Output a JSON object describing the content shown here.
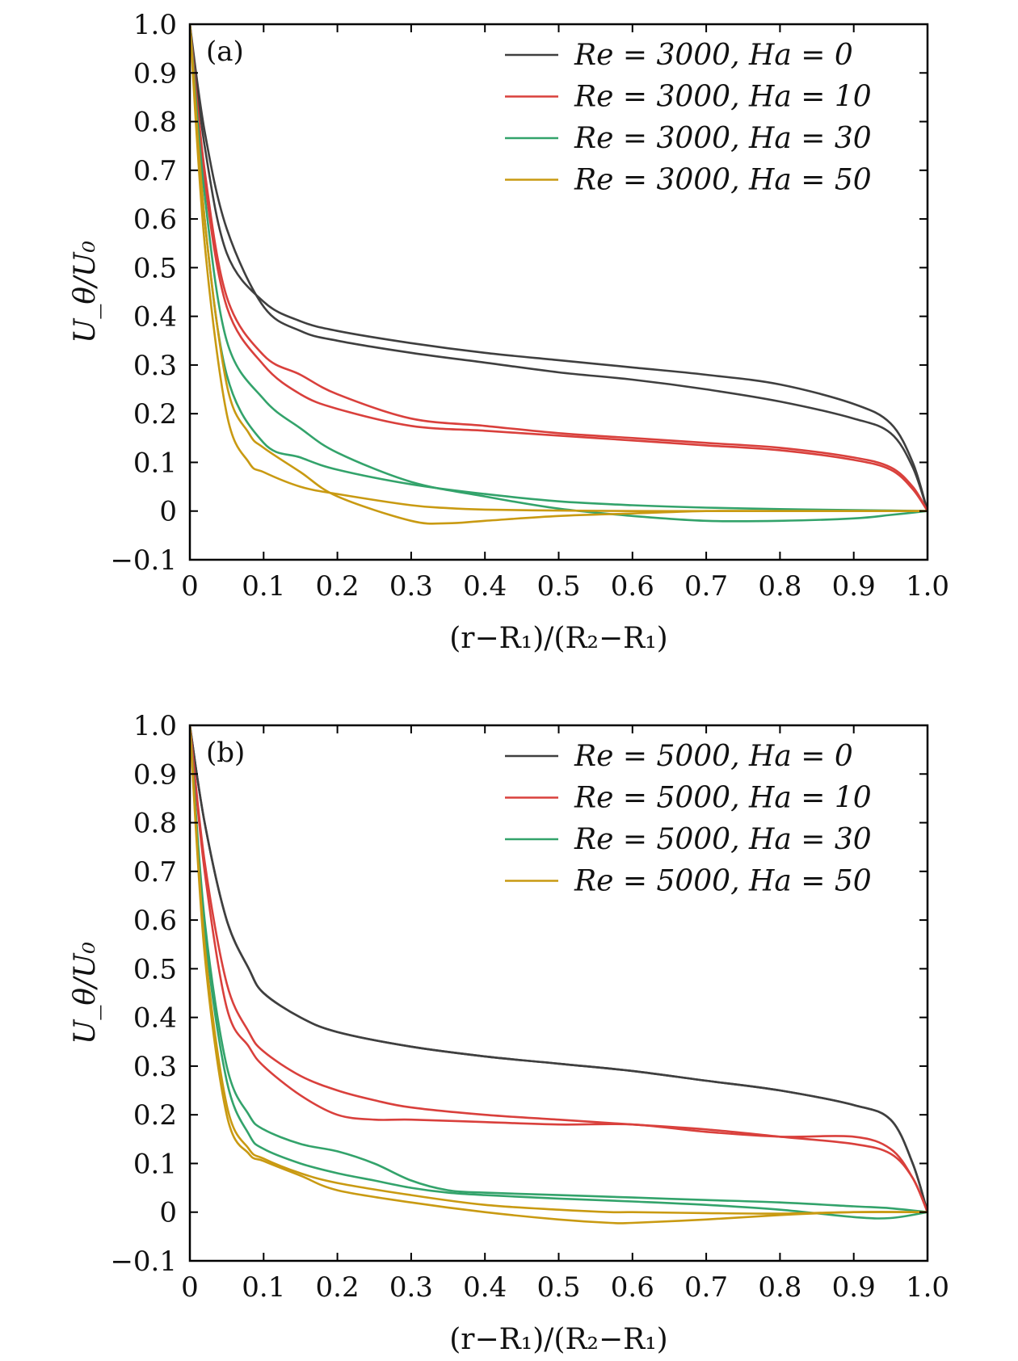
{
  "chart_data": [
    {
      "type": "line",
      "panel_label": "(a)",
      "xlabel": "(r−R₁)/(R₂−R₁)",
      "ylabel": "U_θ/U₀",
      "xlim": [
        0,
        1.0
      ],
      "ylim": [
        -0.1,
        1.0
      ],
      "x_ticks": [
        "0",
        "0.1",
        "0.2",
        "0.3",
        "0.4",
        "0.5",
        "0.6",
        "0.7",
        "0.8",
        "0.9",
        "1.0"
      ],
      "y_ticks": [
        "−0.1",
        "0",
        "0.1",
        "0.2",
        "0.3",
        "0.4",
        "0.5",
        "0.6",
        "0.7",
        "0.8",
        "0.9",
        "1.0"
      ],
      "legend_position": "top-right",
      "grid": false,
      "series": [
        {
          "name": "Re = 3000, Ha = 0",
          "color": "#3f3f3f",
          "x": [
            0,
            0.02,
            0.05,
            0.1,
            0.15,
            0.2,
            0.3,
            0.4,
            0.5,
            0.6,
            0.7,
            0.8,
            0.9,
            0.95,
            0.98,
            1.0
          ],
          "y": [
            1.0,
            0.75,
            0.53,
            0.43,
            0.39,
            0.37,
            0.345,
            0.325,
            0.31,
            0.295,
            0.28,
            0.26,
            0.22,
            0.18,
            0.1,
            0
          ],
          "y2": [
            1.0,
            0.78,
            0.58,
            0.42,
            0.37,
            0.35,
            0.325,
            0.305,
            0.285,
            0.27,
            0.25,
            0.225,
            0.19,
            0.16,
            0.09,
            0
          ]
        },
        {
          "name": "Re = 3000, Ha = 10",
          "color": "#d9403c",
          "x": [
            0,
            0.02,
            0.05,
            0.1,
            0.15,
            0.2,
            0.3,
            0.4,
            0.5,
            0.6,
            0.7,
            0.8,
            0.9,
            0.95,
            0.98,
            1.0
          ],
          "y": [
            1.0,
            0.7,
            0.44,
            0.32,
            0.28,
            0.24,
            0.19,
            0.175,
            0.16,
            0.15,
            0.14,
            0.13,
            0.11,
            0.09,
            0.05,
            0
          ],
          "y2": [
            1.0,
            0.68,
            0.42,
            0.3,
            0.24,
            0.21,
            0.175,
            0.165,
            0.155,
            0.145,
            0.135,
            0.125,
            0.105,
            0.085,
            0.045,
            0
          ]
        },
        {
          "name": "Re = 3000, Ha = 30",
          "color": "#33a36b",
          "x": [
            0,
            0.02,
            0.05,
            0.1,
            0.15,
            0.2,
            0.3,
            0.4,
            0.5,
            0.6,
            0.7,
            0.8,
            0.9,
            0.95,
            1.0
          ],
          "y": [
            1.0,
            0.65,
            0.35,
            0.23,
            0.17,
            0.12,
            0.06,
            0.03,
            0.005,
            -0.01,
            -0.02,
            -0.02,
            -0.015,
            -0.008,
            0
          ],
          "y2": [
            1.0,
            0.6,
            0.28,
            0.14,
            0.11,
            0.085,
            0.055,
            0.035,
            0.02,
            0.012,
            0.007,
            0.004,
            0.002,
            0.001,
            0
          ]
        },
        {
          "name": "Re = 3000, Ha = 50",
          "color": "#c99a12",
          "x": [
            0,
            0.02,
            0.05,
            0.08,
            0.1,
            0.15,
            0.2,
            0.3,
            0.35,
            0.4,
            0.5,
            0.6,
            0.7,
            0.8,
            0.9,
            1.0
          ],
          "y": [
            1.0,
            0.6,
            0.26,
            0.16,
            0.13,
            0.08,
            0.03,
            -0.02,
            -0.025,
            -0.02,
            -0.01,
            -0.005,
            0,
            0,
            0,
            0
          ],
          "y2": [
            1.0,
            0.55,
            0.2,
            0.1,
            0.08,
            0.05,
            0.035,
            0.012,
            0.006,
            0.003,
            0.001,
            0,
            0,
            0,
            0,
            0
          ]
        }
      ]
    },
    {
      "type": "line",
      "panel_label": "(b)",
      "xlabel": "(r−R₁)/(R₂−R₁)",
      "ylabel": "U_θ/U₀",
      "xlim": [
        0,
        1.0
      ],
      "ylim": [
        -0.1,
        1.0
      ],
      "x_ticks": [
        "0",
        "0.1",
        "0.2",
        "0.3",
        "0.4",
        "0.5",
        "0.6",
        "0.7",
        "0.8",
        "0.9",
        "1.0"
      ],
      "y_ticks": [
        "−0.1",
        "0",
        "0.1",
        "0.2",
        "0.3",
        "0.4",
        "0.5",
        "0.6",
        "0.7",
        "0.8",
        "0.9",
        "1.0"
      ],
      "legend_position": "top-right",
      "grid": false,
      "series": [
        {
          "name": "Re = 5000, Ha = 0",
          "color": "#3f3f3f",
          "x": [
            0,
            0.02,
            0.05,
            0.08,
            0.1,
            0.15,
            0.2,
            0.3,
            0.4,
            0.5,
            0.6,
            0.7,
            0.8,
            0.9,
            0.95,
            0.98,
            1.0
          ],
          "y": [
            1.0,
            0.8,
            0.6,
            0.5,
            0.45,
            0.4,
            0.37,
            0.34,
            0.32,
            0.305,
            0.29,
            0.27,
            0.25,
            0.22,
            0.19,
            0.1,
            0
          ],
          "y2": [
            1.0,
            0.8,
            0.6,
            0.5,
            0.45,
            0.4,
            0.37,
            0.34,
            0.32,
            0.305,
            0.29,
            0.27,
            0.25,
            0.22,
            0.19,
            0.1,
            0
          ]
        },
        {
          "name": "Re = 5000, Ha = 10",
          "color": "#d9403c",
          "x": [
            0,
            0.02,
            0.05,
            0.08,
            0.1,
            0.15,
            0.2,
            0.25,
            0.3,
            0.4,
            0.5,
            0.6,
            0.7,
            0.8,
            0.9,
            0.95,
            0.98,
            1.0
          ],
          "y": [
            1.0,
            0.72,
            0.47,
            0.37,
            0.33,
            0.28,
            0.25,
            0.23,
            0.215,
            0.2,
            0.19,
            0.18,
            0.17,
            0.155,
            0.14,
            0.12,
            0.07,
            0
          ],
          "y2": [
            1.0,
            0.7,
            0.42,
            0.34,
            0.3,
            0.24,
            0.2,
            0.19,
            0.19,
            0.185,
            0.18,
            0.18,
            0.165,
            0.155,
            0.155,
            0.13,
            0.07,
            0
          ]
        },
        {
          "name": "Re = 5000, Ha = 30",
          "color": "#33a36b",
          "x": [
            0,
            0.02,
            0.05,
            0.08,
            0.1,
            0.15,
            0.2,
            0.25,
            0.3,
            0.35,
            0.4,
            0.5,
            0.6,
            0.7,
            0.8,
            0.9,
            0.95,
            1.0
          ],
          "y": [
            1.0,
            0.6,
            0.3,
            0.2,
            0.17,
            0.14,
            0.125,
            0.1,
            0.065,
            0.045,
            0.04,
            0.035,
            0.03,
            0.025,
            0.02,
            0.012,
            0.008,
            0
          ],
          "y2": [
            1.0,
            0.58,
            0.27,
            0.16,
            0.13,
            0.1,
            0.08,
            0.065,
            0.05,
            0.04,
            0.035,
            0.028,
            0.022,
            0.015,
            0.005,
            -0.01,
            -0.012,
            0
          ]
        },
        {
          "name": "Re = 5000, Ha = 50",
          "color": "#c99a12",
          "x": [
            0,
            0.02,
            0.05,
            0.08,
            0.1,
            0.15,
            0.2,
            0.3,
            0.4,
            0.5,
            0.57,
            0.6,
            0.7,
            0.8,
            0.9,
            1.0
          ],
          "y": [
            1.0,
            0.55,
            0.22,
            0.13,
            0.11,
            0.08,
            0.06,
            0.035,
            0.015,
            0.005,
            0.0,
            0.0,
            -0.002,
            -0.003,
            0,
            0
          ],
          "y2": [
            1.0,
            0.53,
            0.2,
            0.12,
            0.105,
            0.075,
            0.045,
            0.02,
            0.0,
            -0.015,
            -0.022,
            -0.022,
            -0.015,
            -0.006,
            0,
            0
          ]
        }
      ]
    }
  ]
}
